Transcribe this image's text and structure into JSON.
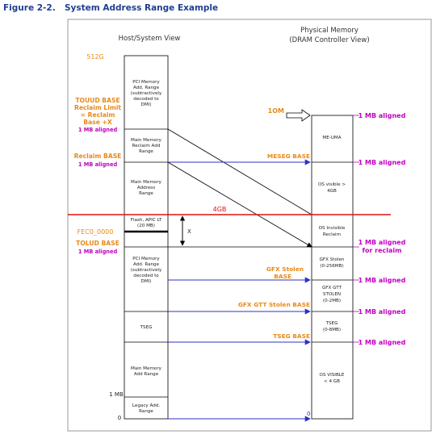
{
  "figure": {
    "number": "Figure 2-2.",
    "title": "System Address Range Example"
  },
  "headers": {
    "host_view": "Host/System View",
    "phys_line1": "Physical Memory",
    "phys_line2": "(DRAM Controller View)"
  },
  "left_labels": {
    "size_512g": "512G",
    "touud_1": "TOUUD BASE",
    "touud_2": "Reclaim Limit",
    "touud_3": "= Reclaim",
    "touud_4": "Base +X",
    "touud_5": "1 MB aligned",
    "reclaim_1": "Reclaim BASE",
    "reclaim_2": "1 MB aligned",
    "fec0": "FEC0_0000",
    "tolud_1": "TOLUD BASE",
    "tolud_2": "1 MB aligned",
    "one_mb": "1 MB",
    "zero": "0"
  },
  "host_blocks": {
    "pci_upper_1": "PCI Memory",
    "pci_upper_2": "Add. Range",
    "pci_upper_3": "(subtractively",
    "pci_upper_4": "decoded to",
    "pci_upper_5": "DMI)",
    "reclaim_1": "Main Memory",
    "reclaim_2": "Reclaim Add",
    "reclaim_3": "Range",
    "main_1": "Main Memory",
    "main_2": "Address",
    "main_3": "Range",
    "flash_1": "Flash, APIC LT",
    "flash_2": "(20 MB)",
    "pci_lower_1": "PCI Memory",
    "pci_lower_2": "Add. Range",
    "pci_lower_3": "(subtractively",
    "pci_lower_4": "decoded to",
    "pci_lower_5": "DMI)",
    "tseg": "TSEG",
    "main_low_1": "Main Memory",
    "main_low_2": "Add Range",
    "legacy_1": "Legacy Add.",
    "legacy_2": "Range"
  },
  "phys_blocks": {
    "me_uma": "ME-UMA",
    "os_vis_1": "OS visible >",
    "os_vis_2": "4GB",
    "os_inv_1": "OS Invisible",
    "os_inv_2": "Reclaim",
    "gfx_1": "GFX Stolen",
    "gfx_2": "(0-256MB)",
    "gtt_1": "GFX GTT",
    "gtt_2": "STOLEN",
    "gtt_3": "(0-2MB)",
    "tseg_1": "TSEG",
    "tseg_2": "(0-8MB)",
    "os_low_1": "OS VISIBLE",
    "os_low_2": "< 4 GB"
  },
  "middle_labels": {
    "one_m": "1OM",
    "meseg": "MESEG BASE",
    "four_gb": "4GB",
    "x": "X",
    "gfx_stolen_1": "GFX Stolen",
    "gfx_stolen_2": "BASE",
    "gfx_gtt": "GFX GTT Stolen BASE",
    "tseg_base": "TSEG BASE",
    "zero": "0"
  },
  "right_labels": {
    "a1": "1 MB aligned",
    "a2": "1 MB aligned",
    "a3_1": "1 MB aligned",
    "a3_2": "for reclaim",
    "a4": "1 MB aligned",
    "a5": "1 MB aligned",
    "a6": "1 MB aligned"
  },
  "colors": {
    "title": "#1f3f8f",
    "orange": "#e8891a",
    "magenta": "#c000c0",
    "red_line": "#e01010",
    "blue_arrow": "#3030c8",
    "block_border": "#000000",
    "frame": "#9a9a9a"
  }
}
